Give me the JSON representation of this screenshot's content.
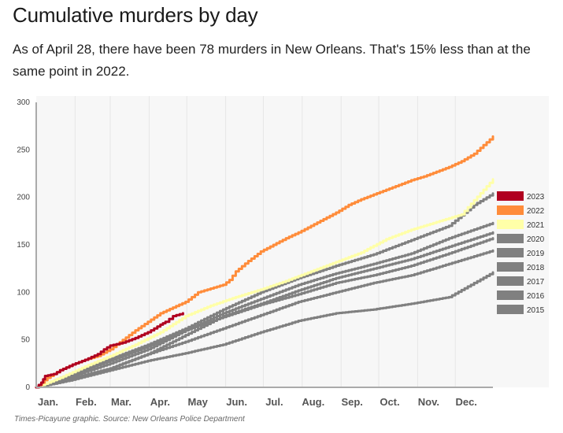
{
  "header": {
    "title": "Cumulative murders by day",
    "subtitle": "As of April 28, there have been 78 murders in New Orleans. That's 15% less than at the same point in 2022."
  },
  "footer": {
    "source": "Times-Picayune graphic. Source: New Orleans Police Department"
  },
  "colors": {
    "plot_bg": "#f7f7f7",
    "grid": "#e6e6e6",
    "axis": "#aaaaaa"
  },
  "chart_data": {
    "type": "line",
    "title": "Cumulative murders by day",
    "xlabel": "",
    "ylabel": "",
    "x_unit": "day of year",
    "xlim": [
      1,
      365
    ],
    "ylim": [
      0,
      300
    ],
    "yticks": [
      0,
      50,
      100,
      150,
      200,
      250,
      300
    ],
    "xticks": [
      {
        "label": "Jan.",
        "day": 1
      },
      {
        "label": "Feb.",
        "day": 32
      },
      {
        "label": "Mar.",
        "day": 60
      },
      {
        "label": "Apr.",
        "day": 91
      },
      {
        "label": "May",
        "day": 121
      },
      {
        "label": "Jun.",
        "day": 152
      },
      {
        "label": "Jul.",
        "day": 182
      },
      {
        "label": "Aug.",
        "day": 213
      },
      {
        "label": "Sep.",
        "day": 244
      },
      {
        "label": "Oct.",
        "day": 274
      },
      {
        "label": "Nov.",
        "day": 305
      },
      {
        "label": "Dec.",
        "day": 335
      }
    ],
    "grid": "vertical",
    "legend_position": "right",
    "series": [
      {
        "name": "2023",
        "color": "#b00020",
        "width": 3,
        "x": [
          1,
          5,
          8,
          15,
          20,
          30,
          40,
          50,
          55,
          60,
          70,
          80,
          90,
          100,
          104,
          110,
          118
        ],
        "y": [
          0,
          5,
          12,
          14,
          18,
          24,
          29,
          35,
          40,
          44,
          47,
          52,
          58,
          66,
          69,
          75,
          78
        ]
      },
      {
        "name": "2022",
        "color": "#ff8c3a",
        "width": 3,
        "x": [
          1,
          10,
          20,
          30,
          40,
          50,
          60,
          70,
          80,
          90,
          100,
          110,
          120,
          130,
          140,
          150,
          155,
          160,
          170,
          180,
          190,
          200,
          210,
          220,
          230,
          240,
          250,
          260,
          270,
          280,
          290,
          300,
          310,
          320,
          330,
          340,
          350,
          360,
          365
        ],
        "y": [
          0,
          10,
          18,
          24,
          29,
          33,
          40,
          50,
          60,
          69,
          78,
          84,
          90,
          100,
          104,
          108,
          113,
          122,
          133,
          143,
          150,
          157,
          163,
          170,
          177,
          184,
          192,
          198,
          203,
          208,
          213,
          218,
          222,
          227,
          232,
          238,
          246,
          258,
          264
        ]
      },
      {
        "name": "2021",
        "color": "#ffffa8",
        "width": 3,
        "x": [
          1,
          20,
          40,
          60,
          80,
          100,
          120,
          140,
          160,
          180,
          200,
          220,
          240,
          260,
          280,
          300,
          320,
          340,
          350,
          365
        ],
        "y": [
          0,
          10,
          22,
          33,
          45,
          58,
          75,
          86,
          95,
          103,
          112,
          122,
          132,
          142,
          156,
          166,
          174,
          182,
          197,
          219
        ]
      },
      {
        "name": "2020",
        "color": "#808080",
        "width": 3,
        "x": [
          1,
          30,
          60,
          90,
          120,
          150,
          180,
          210,
          240,
          270,
          300,
          330,
          350,
          365
        ],
        "y": [
          0,
          15,
          30,
          45,
          62,
          82,
          100,
          115,
          128,
          140,
          155,
          170,
          192,
          204
        ]
      },
      {
        "name": "2019",
        "color": "#808080",
        "width": 3,
        "x": [
          1,
          30,
          60,
          90,
          120,
          150,
          180,
          210,
          240,
          270,
          300,
          330,
          365
        ],
        "y": [
          0,
          12,
          25,
          40,
          60,
          78,
          93,
          108,
          120,
          130,
          141,
          157,
          173
        ]
      },
      {
        "name": "2018",
        "color": "#808080",
        "width": 3,
        "x": [
          1,
          30,
          60,
          90,
          120,
          150,
          180,
          210,
          240,
          270,
          300,
          330,
          365
        ],
        "y": [
          0,
          8,
          20,
          35,
          55,
          75,
          88,
          102,
          115,
          125,
          135,
          148,
          163
        ]
      },
      {
        "name": "2017",
        "color": "#808080",
        "width": 3,
        "x": [
          1,
          30,
          60,
          90,
          120,
          150,
          180,
          210,
          240,
          270,
          300,
          330,
          365
        ],
        "y": [
          0,
          14,
          28,
          43,
          60,
          74,
          87,
          98,
          110,
          118,
          128,
          141,
          157
        ]
      },
      {
        "name": "2016",
        "color": "#808080",
        "width": 3,
        "x": [
          1,
          30,
          60,
          90,
          120,
          150,
          180,
          210,
          240,
          270,
          300,
          330,
          365
        ],
        "y": [
          0,
          10,
          20,
          35,
          48,
          62,
          76,
          90,
          100,
          110,
          118,
          130,
          144
        ]
      },
      {
        "name": "2015",
        "color": "#808080",
        "width": 3,
        "x": [
          1,
          30,
          60,
          90,
          120,
          150,
          180,
          210,
          240,
          270,
          300,
          330,
          365
        ],
        "y": [
          0,
          8,
          18,
          28,
          36,
          45,
          58,
          70,
          78,
          82,
          88,
          95,
          121
        ]
      }
    ]
  }
}
